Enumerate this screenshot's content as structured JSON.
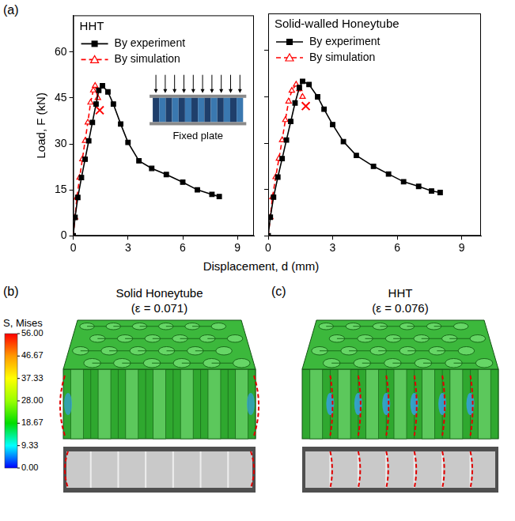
{
  "figure": {
    "panel_label": "(a)",
    "xlabel": "Displacement, d (mm)",
    "ylabel": "Load, F (kN)"
  },
  "chart_data": [
    {
      "type": "line",
      "title": "HHT",
      "inset_label": "Fixed plate",
      "xlim": [
        0,
        9.9
      ],
      "xticks": [
        0,
        3,
        6,
        9
      ],
      "ylim": [
        0,
        72
      ],
      "yticks": [
        0,
        15,
        30,
        45,
        60
      ],
      "grid": false,
      "legend": "upper left",
      "series": [
        {
          "name": "By experiment",
          "color": "#000000",
          "marker": "square",
          "line_style": "solid",
          "x": [
            0,
            0.1,
            0.25,
            0.45,
            0.65,
            0.85,
            1.05,
            1.25,
            1.4,
            1.6,
            1.9,
            2.2,
            2.6,
            3.0,
            3.6,
            4.3,
            5.1,
            6.0,
            6.8,
            7.6,
            8.0
          ],
          "values": [
            0,
            6,
            12.5,
            19,
            25,
            31,
            37,
            43,
            47.5,
            49,
            47,
            43,
            36.5,
            30.5,
            24.5,
            22,
            20,
            17.5,
            15,
            13.5,
            12.8
          ]
        },
        {
          "name": "By simulation",
          "color": "#ff0000",
          "marker": "triangle",
          "line_style": "dashed",
          "x": [
            0,
            0.1,
            0.2,
            0.35,
            0.5,
            0.65,
            0.8,
            0.95,
            1.1,
            1.2,
            1.35
          ],
          "values": [
            0,
            6,
            12.5,
            19,
            25,
            31,
            37,
            43.5,
            47.5,
            49,
            45
          ],
          "failure_point": [
            1.45,
            41
          ]
        }
      ]
    },
    {
      "type": "line",
      "title": "Solid-walled Honeytube",
      "xlim": [
        0,
        9.9
      ],
      "xticks": [
        0,
        3,
        6,
        9
      ],
      "ylim": [
        0,
        72
      ],
      "yticks": [
        0,
        15,
        30,
        45,
        60
      ],
      "grid": false,
      "legend": "upper left",
      "tick_labels": "x",
      "series": [
        {
          "name": "By experiment",
          "color": "#000000",
          "marker": "square",
          "line_style": "solid",
          "x": [
            0,
            0.1,
            0.25,
            0.45,
            0.65,
            0.85,
            1.05,
            1.25,
            1.45,
            1.6,
            1.9,
            2.3,
            2.6,
            3.0,
            3.5,
            4.1,
            4.9,
            5.6,
            6.3,
            7.0,
            7.6,
            8.0
          ],
          "values": [
            0,
            6,
            12.5,
            19,
            25,
            31,
            37,
            43,
            48,
            50,
            49,
            45,
            41,
            36,
            30.5,
            26,
            22.5,
            20,
            17.5,
            16,
            14.5,
            14
          ]
        },
        {
          "name": "By simulation",
          "color": "#ff0000",
          "marker": "triangle",
          "line_style": "dashed",
          "x": [
            0,
            0.1,
            0.2,
            0.35,
            0.5,
            0.65,
            0.8,
            0.95,
            1.1,
            1.3,
            1.45,
            1.6
          ],
          "values": [
            0,
            6,
            12.5,
            19,
            25,
            31,
            37.5,
            43.5,
            47,
            49,
            47.5,
            45
          ],
          "failure_point": [
            1.75,
            42
          ]
        }
      ]
    }
  ],
  "panels": [
    {
      "label": "(b)",
      "title": "Solid Honeytube",
      "strain": "(ε = 0.071)",
      "kind": "edge"
    },
    {
      "label": "(c)",
      "title": "HHT",
      "strain": "(ε = 0.076)",
      "kind": "distributed"
    }
  ],
  "colorbar": {
    "title": "S, Mises",
    "range": [
      0,
      56
    ],
    "ticks": [
      {
        "value": 56,
        "label": "56.00"
      },
      {
        "value": 46.67,
        "label": "46.67"
      },
      {
        "value": 37.33,
        "label": "37.33"
      },
      {
        "value": 28,
        "label": "28.00"
      },
      {
        "value": 18.67,
        "label": "18.67"
      },
      {
        "value": 9.33,
        "label": "9.33"
      },
      {
        "value": 0,
        "label": "0.00"
      }
    ],
    "colors": [
      "#ff0000",
      "#ff9900",
      "#ffff00",
      "#99ff00",
      "#00dd00",
      "#00ffff",
      "#0000ff"
    ]
  }
}
